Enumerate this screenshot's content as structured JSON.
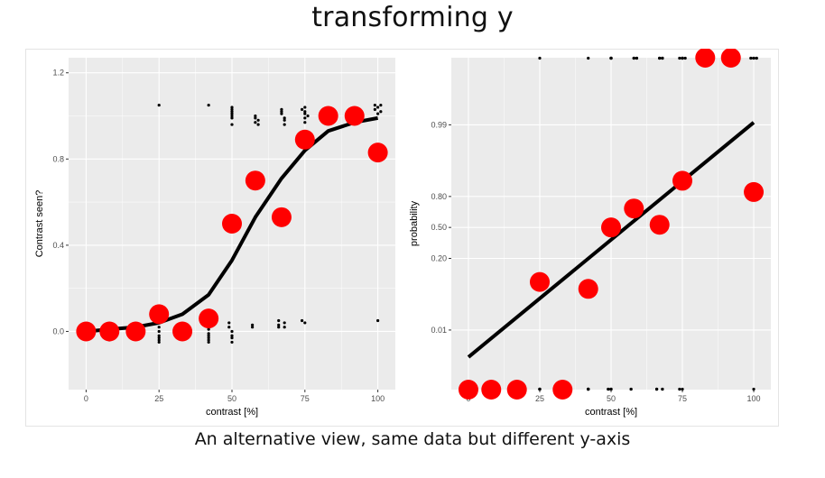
{
  "title": "transforming y",
  "caption": "An alternative view, same data but different y-axis",
  "colors": {
    "panel_bg": "#EBEBEB",
    "grid": "#FFFFFF",
    "point": "#FF0000",
    "line": "#000000",
    "raw": "#000000",
    "tick_text": "#4D4D4D"
  },
  "chart_data": [
    {
      "type": "scatter",
      "xlabel": "contrast [%]",
      "ylabel": "Contrast seen?",
      "xlim": [
        -6,
        106
      ],
      "ylim": [
        -0.27,
        1.27
      ],
      "x_ticks": [
        0,
        25,
        50,
        75,
        100
      ],
      "x_tick_labels": [
        "0",
        "25",
        "50",
        "75",
        "100"
      ],
      "y_ticks": [
        0.0,
        0.4,
        0.8,
        1.2
      ],
      "y_tick_labels": [
        "0.0",
        "0.4",
        "0.8",
        "1.2"
      ],
      "grid": true,
      "legend": "none",
      "series": [
        {
          "kind": "points",
          "x": [
            0,
            8,
            17,
            25,
            33,
            42,
            50,
            58,
            67,
            75,
            83,
            92,
            100
          ],
          "values": [
            0.0,
            0.0,
            0.0,
            0.08,
            0.0,
            0.06,
            0.5,
            0.7,
            0.53,
            0.89,
            1.0,
            1.0,
            0.83
          ]
        },
        {
          "kind": "fit_line",
          "x": [
            0,
            8,
            17,
            25,
            33,
            42,
            50,
            58,
            67,
            75,
            83,
            92,
            100
          ],
          "values": [
            0.0,
            0.01,
            0.02,
            0.04,
            0.08,
            0.17,
            0.33,
            0.53,
            0.71,
            0.84,
            0.93,
            0.97,
            0.99
          ]
        },
        {
          "kind": "raw_responses",
          "x": [
            8,
            8,
            8,
            25,
            25,
            25,
            25,
            25,
            25,
            25,
            42,
            42,
            42,
            42,
            42,
            42,
            42,
            42,
            49,
            49,
            50,
            50,
            50,
            50,
            50,
            50,
            50,
            50,
            50,
            50,
            50,
            57,
            57,
            58,
            58,
            58,
            59,
            59,
            66,
            66,
            66,
            67,
            67,
            67,
            68,
            68,
            68,
            68,
            68,
            74,
            74,
            75,
            75,
            75,
            75,
            75,
            75,
            76,
            99,
            99,
            100,
            100,
            100,
            101,
            101
          ],
          "values": [
            0.03,
            0.0,
            -0.04,
            0.02,
            0.0,
            -0.02,
            -0.03,
            -0.04,
            -0.05,
            1.05,
            0.03,
            0.01,
            -0.01,
            -0.02,
            -0.03,
            -0.04,
            -0.05,
            1.05,
            0.04,
            0.02,
            0.0,
            -0.02,
            -0.03,
            -0.05,
            1.04,
            1.03,
            1.02,
            1.01,
            1.0,
            0.99,
            0.96,
            0.03,
            0.02,
            1.0,
            0.99,
            0.97,
            0.98,
            0.96,
            0.05,
            0.03,
            0.02,
            1.03,
            1.02,
            1.01,
            0.99,
            0.98,
            0.96,
            0.04,
            0.02,
            0.05,
            1.03,
            0.04,
            1.04,
            1.02,
            1.01,
            0.99,
            0.97,
            1.0,
            1.05,
            1.03,
            1.04,
            1.01,
            0.05,
            1.05,
            1.02
          ]
        }
      ]
    },
    {
      "type": "scatter",
      "xlabel": "contrast [%]",
      "ylabel": "probability",
      "y_scale": "logit",
      "xlim": [
        -6,
        106
      ],
      "ylim": [
        0.0007,
        0.9995
      ],
      "x_ticks": [
        0,
        25,
        50,
        75,
        100
      ],
      "x_tick_labels": [
        "0",
        "25",
        "50",
        "75",
        "100"
      ],
      "y_ticks": [
        0.01,
        0.2,
        0.5,
        0.8,
        0.99
      ],
      "y_tick_labels": [
        "0.01",
        "0.20",
        "0.50",
        "0.80",
        "0.99"
      ],
      "grid": true,
      "legend": "none",
      "series": [
        {
          "kind": "points",
          "x": [
            0,
            8,
            17,
            25,
            33,
            42,
            50,
            58,
            67,
            75,
            83,
            92,
            100
          ],
          "values": [
            0.0,
            0.0,
            0.0,
            0.08,
            0.0,
            0.06,
            0.5,
            0.7,
            0.53,
            0.89,
            1.0,
            1.0,
            0.83
          ]
        },
        {
          "kind": "fit_line",
          "x": [
            0,
            100
          ],
          "values": [
            0.003,
            0.991
          ]
        },
        {
          "kind": "raw_responses",
          "x": [
            8,
            8,
            8,
            25,
            25,
            25,
            25,
            25,
            25,
            25,
            42,
            42,
            42,
            42,
            42,
            42,
            42,
            42,
            49,
            49,
            50,
            50,
            50,
            50,
            50,
            50,
            50,
            50,
            50,
            50,
            50,
            57,
            57,
            58,
            58,
            58,
            59,
            59,
            66,
            66,
            66,
            67,
            67,
            67,
            68,
            68,
            68,
            68,
            68,
            74,
            74,
            75,
            75,
            75,
            75,
            75,
            75,
            76,
            99,
            99,
            100,
            100,
            100,
            101,
            101
          ],
          "values": [
            0,
            0,
            0,
            0,
            0,
            0,
            0,
            0,
            0,
            1,
            0,
            0,
            0,
            0,
            0,
            0,
            0,
            1,
            0,
            0,
            0,
            0,
            0,
            0,
            1,
            1,
            1,
            1,
            1,
            1,
            1,
            0,
            0,
            1,
            1,
            1,
            1,
            1,
            0,
            0,
            0,
            1,
            1,
            1,
            1,
            1,
            1,
            0,
            0,
            0,
            1,
            0,
            1,
            1,
            1,
            1,
            1,
            1,
            1,
            1,
            1,
            1,
            0,
            1,
            1
          ]
        }
      ]
    }
  ]
}
